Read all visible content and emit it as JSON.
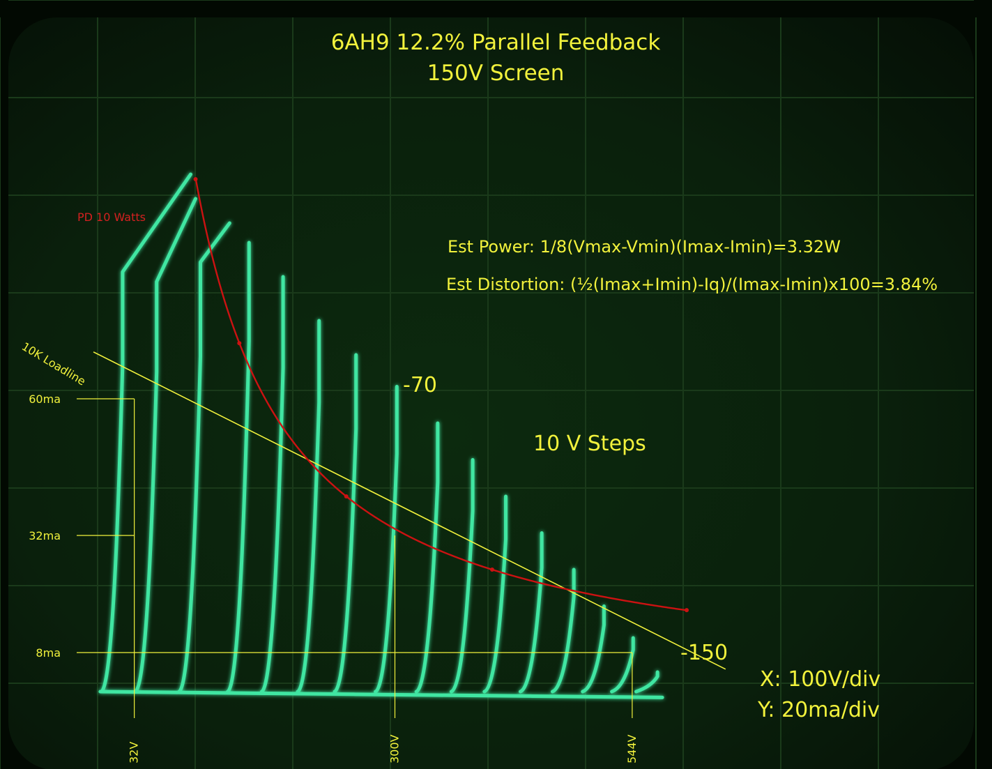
{
  "chart_data": {
    "type": "line",
    "title": "6AH9 12.2% Parallel Feedback",
    "subtitle": "150V Screen",
    "x_scale_label": "X: 100V/div",
    "y_scale_label": "Y: 20ma/div",
    "step_label": "10 V Steps",
    "grid": true,
    "annotations": {
      "est_power": "Est Power:  1/8(Vmax-Vmin)(Imax-Imin)=3.32W",
      "est_distortion": "Est Distortion: (½(Imax+Imin)-Iq)/(Imax-Imin)x100=3.84%",
      "pd_label": "PD 10 Watts",
      "loadline_label": "10K Loadline",
      "grid_label_first": "-70",
      "grid_label_last": "-150"
    },
    "y_markers": [
      {
        "label": "60ma",
        "value": 60
      },
      {
        "label": "32ma",
        "value": 32
      },
      {
        "label": "8ma",
        "value": 8
      }
    ],
    "x_markers": [
      {
        "label": "32V",
        "value": 32
      },
      {
        "label": "300V",
        "value": 300
      },
      {
        "label": "544V",
        "value": 544
      }
    ],
    "loadline": {
      "name": "10K Loadline",
      "x": [
        -10,
        640
      ],
      "y": [
        69.6,
        4.6
      ]
    },
    "pd_curve": {
      "name": "PD 10 Watts",
      "x": [
        95,
        140,
        190,
        250,
        300,
        400,
        500,
        600
      ],
      "y": [
        105,
        71.4,
        52.6,
        40,
        33.3,
        25,
        20,
        16.7
      ]
    },
    "plate_curves": [
      {
        "knee_v": 20,
        "knee_i": 86,
        "peak_v": 90,
        "peak_i": 106
      },
      {
        "knee_v": 55,
        "knee_i": 84,
        "peak_v": 95,
        "peak_i": 101
      },
      {
        "knee_v": 100,
        "knee_i": 88,
        "peak_v": 130,
        "peak_i": 96
      },
      {
        "knee_v": 150,
        "knee_i": 92,
        "peak_v": 150,
        "peak_i": 92
      },
      {
        "knee_v": 185,
        "knee_i": 85,
        "peak_v": 185,
        "peak_i": 85
      },
      {
        "knee_v": 222,
        "knee_i": 76,
        "peak_v": 222,
        "peak_i": 76
      },
      {
        "knee_v": 260,
        "knee_i": 69,
        "peak_v": 260,
        "peak_i": 69
      },
      {
        "knee_v": 302,
        "knee_i": 62.5,
        "peak_v": 302,
        "peak_i": 62.5
      },
      {
        "knee_v": 344,
        "knee_i": 55,
        "peak_v": 344,
        "peak_i": 55
      },
      {
        "knee_v": 380,
        "knee_i": 47.5,
        "peak_v": 380,
        "peak_i": 47.5
      },
      {
        "knee_v": 414,
        "knee_i": 40,
        "peak_v": 414,
        "peak_i": 40
      },
      {
        "knee_v": 451,
        "knee_i": 32.5,
        "peak_v": 451,
        "peak_i": 32.5
      },
      {
        "knee_v": 484,
        "knee_i": 25,
        "peak_v": 484,
        "peak_i": 25
      },
      {
        "knee_v": 515,
        "knee_i": 17.5,
        "peak_v": 515,
        "peak_i": 17.5
      },
      {
        "knee_v": 545,
        "knee_i": 11,
        "peak_v": 545,
        "peak_i": 11
      },
      {
        "knee_v": 570,
        "knee_i": 4,
        "peak_v": 570,
        "peak_i": 4
      }
    ],
    "colors": {
      "trace": "#3fe6a2",
      "pd_curve": "#cc1212",
      "loadline": "#f2f23c",
      "text": "#f2f23c",
      "pd_label": "#d42020",
      "grid": "#1a3a1a"
    }
  }
}
